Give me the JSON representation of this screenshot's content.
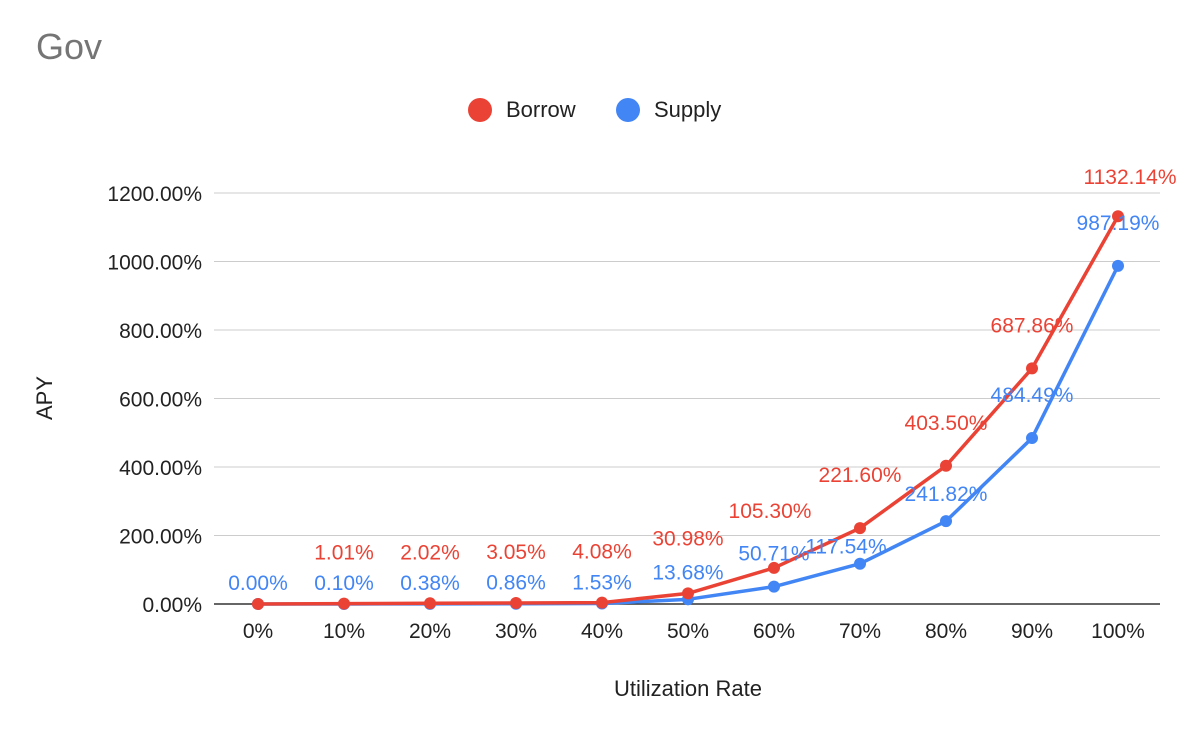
{
  "chart_data": {
    "type": "line",
    "title": "Gov",
    "xlabel": "Utilization Rate",
    "ylabel": "APY",
    "categories": [
      "0%",
      "10%",
      "20%",
      "30%",
      "40%",
      "50%",
      "60%",
      "70%",
      "80%",
      "90%",
      "100%"
    ],
    "ylim": [
      0,
      1200
    ],
    "yticks": [
      "0.00%",
      "200.00%",
      "400.00%",
      "600.00%",
      "800.00%",
      "1000.00%",
      "1200.00%"
    ],
    "grid": true,
    "legend_position": "top",
    "series": [
      {
        "name": "Borrow",
        "color": "#ea4335",
        "values": [
          0.0,
          1.01,
          2.02,
          3.05,
          4.08,
          30.98,
          105.3,
          221.6,
          403.5,
          687.86,
          1132.14
        ],
        "labels": [
          "",
          "1.01%",
          "2.02%",
          "3.05%",
          "4.08%",
          "30.98%",
          "105.30%",
          "221.60%",
          "403.50%",
          "687.86%",
          "1132.14%"
        ]
      },
      {
        "name": "Supply",
        "color": "#4285f4",
        "values": [
          0.0,
          0.1,
          0.38,
          0.86,
          1.53,
          13.68,
          50.71,
          117.54,
          241.82,
          484.49,
          987.19
        ],
        "labels": [
          "0.00%",
          "0.10%",
          "0.38%",
          "0.86%",
          "1.53%",
          "13.68%",
          "50.71%",
          "117.54%",
          "241.82%",
          "484.49%",
          "987.19%"
        ]
      }
    ]
  }
}
